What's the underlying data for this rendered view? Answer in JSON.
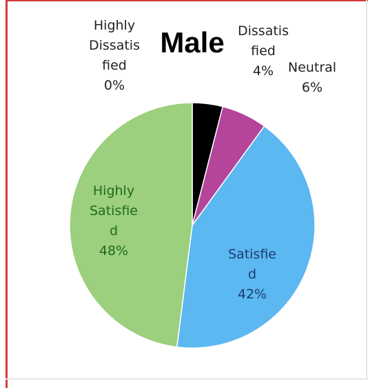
{
  "chart_data": {
    "type": "pie",
    "title": "Male",
    "slices": [
      {
        "label_lines": [
          "Highly",
          "Dissatis",
          "fied"
        ],
        "pct_text": "0%",
        "value": 0,
        "color": "#c0504d",
        "label_color": "#222222"
      },
      {
        "label_lines": [
          "Dissatis",
          "fied"
        ],
        "pct_text": "4%",
        "value": 4,
        "color": "#000000",
        "label_color": "#222222"
      },
      {
        "label_lines": [
          "Neutral"
        ],
        "pct_text": "6%",
        "value": 6,
        "color": "#b5449b",
        "label_color": "#222222"
      },
      {
        "label_lines": [
          "Satisfie",
          "d"
        ],
        "pct_text": "42%",
        "value": 42,
        "color": "#5bb8f0",
        "label_color": "#1f3b73"
      },
      {
        "label_lines": [
          "Highly",
          "Satisfie",
          "d"
        ],
        "pct_text": "48%",
        "value": 48,
        "color": "#9ccf7e",
        "label_color": "#1e6b1e"
      }
    ]
  }
}
